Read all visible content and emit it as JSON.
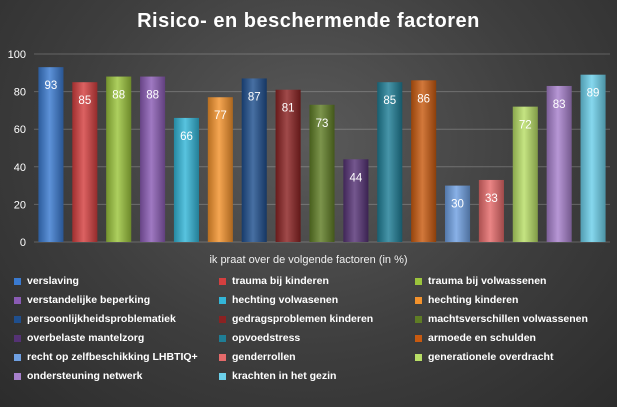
{
  "chart_data": {
    "type": "bar",
    "title": "Risico- en beschermende factoren",
    "xlabel": "ik praat over de volgende factoren (in %)",
    "ylabel": "",
    "ylim": [
      0,
      100
    ],
    "yticks": [
      0,
      20,
      40,
      60,
      80,
      100
    ],
    "grid": true,
    "legend_position": "bottom",
    "series": [
      {
        "name": "verslaving",
        "value": 93,
        "color": "#3a7ad0"
      },
      {
        "name": "trauma bij kinderen",
        "value": 85,
        "color": "#d43f3f"
      },
      {
        "name": "trauma bij volwassenen",
        "value": 88,
        "color": "#9bc43c"
      },
      {
        "name": "verstandelijke beperking",
        "value": 88,
        "color": "#8a5bb4"
      },
      {
        "name": "hechting volwasenen",
        "value": 66,
        "color": "#33b6d8"
      },
      {
        "name": "hechting kinderen",
        "value": 77,
        "color": "#f3922c"
      },
      {
        "name": "persoonlijkheidsproblematiek",
        "value": 87,
        "color": "#1f4f8e"
      },
      {
        "name": "gedragsproblemen kinderen",
        "value": 81,
        "color": "#8b2222"
      },
      {
        "name": "machtsverschillen volwassenen",
        "value": 73,
        "color": "#5f7d25"
      },
      {
        "name": "overbelaste mantelzorg",
        "value": 44,
        "color": "#553275"
      },
      {
        "name": "opvoedstress",
        "value": 85,
        "color": "#1f7e96"
      },
      {
        "name": "armoede en schulden",
        "value": 86,
        "color": "#c85a10"
      },
      {
        "name": "recht op zelfbeschikking LHBTIQ+",
        "value": 30,
        "color": "#6fa0e2"
      },
      {
        "name": "genderrollen",
        "value": 33,
        "color": "#e56a6a"
      },
      {
        "name": "generationele overdracht",
        "value": 72,
        "color": "#b8de66"
      },
      {
        "name": "ondersteuning netwerk",
        "value": 83,
        "color": "#a780cc"
      },
      {
        "name": "krachten in het gezin",
        "value": 89,
        "color": "#6cd0ea"
      }
    ]
  }
}
